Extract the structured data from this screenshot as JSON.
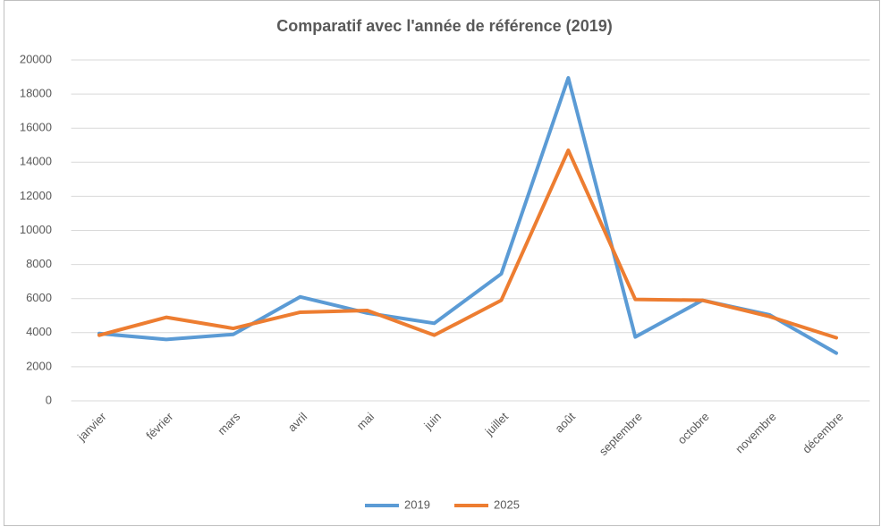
{
  "chart_data": {
    "type": "line",
    "title": "Comparatif avec l'année de référence (2019)",
    "categories": [
      "janvier",
      "février",
      "mars",
      "avril",
      "mai",
      "juin",
      "juillet",
      "août",
      "septembre",
      "octobre",
      "novembre",
      "décembre"
    ],
    "series": [
      {
        "name": "2019",
        "color": "#5b9bd5",
        "values": [
          3950,
          3600,
          3900,
          6100,
          5150,
          4550,
          7450,
          18950,
          3750,
          5900,
          5050,
          2800
        ]
      },
      {
        "name": "2025",
        "color": "#ed7d31",
        "values": [
          3850,
          4900,
          4250,
          5200,
          5300,
          3850,
          5900,
          14700,
          5950,
          5900,
          4950,
          3700
        ]
      }
    ],
    "ylim": [
      0,
      20000
    ],
    "yticks": [
      0,
      2000,
      4000,
      6000,
      8000,
      10000,
      12000,
      14000,
      16000,
      18000,
      20000
    ],
    "grid": true,
    "legend": "bottom"
  }
}
